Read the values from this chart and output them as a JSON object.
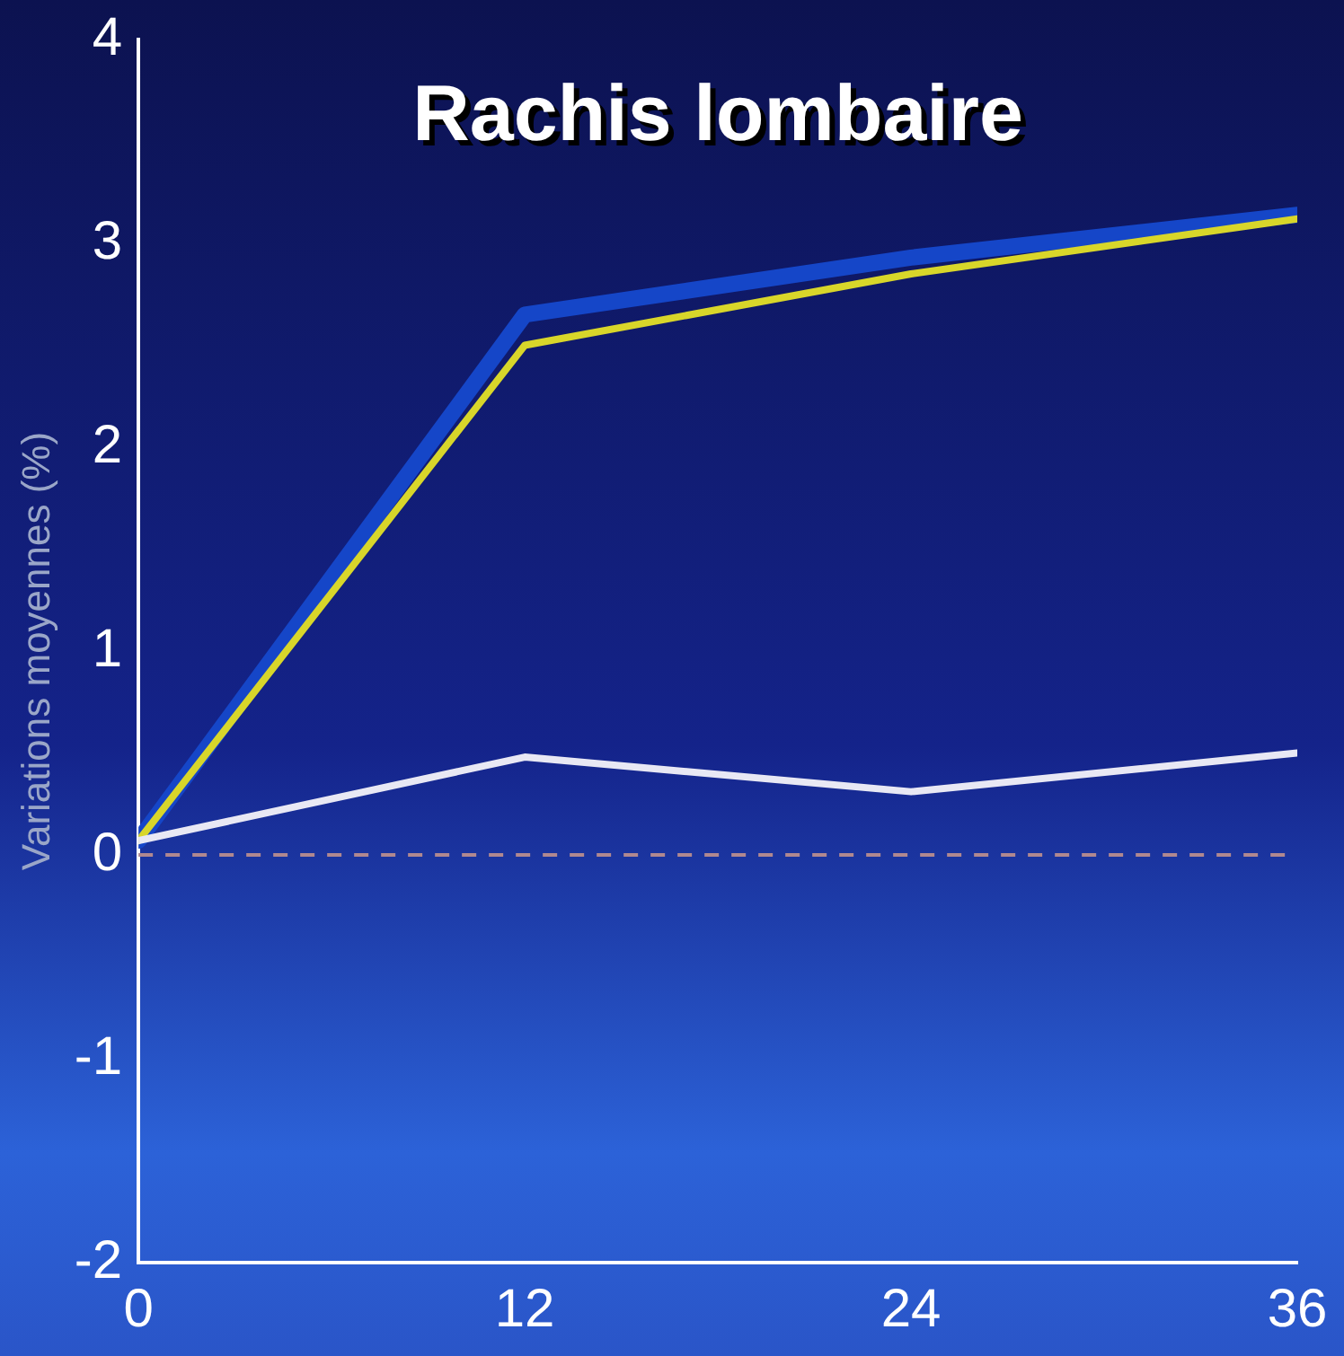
{
  "chart_data": {
    "type": "line",
    "title": "Rachis lombaire",
    "ylabel": "Variations moyennes (%)",
    "x": [
      0,
      12,
      24,
      36
    ],
    "series": [
      {
        "color": "#1546c8",
        "values": [
          0.07,
          2.65,
          2.93,
          3.14
        ]
      },
      {
        "color": "#d8d62a",
        "values": [
          0.07,
          2.5,
          2.85,
          3.12
        ]
      },
      {
        "color": "#e8e8f4",
        "values": [
          0.07,
          0.48,
          0.31,
          0.5
        ]
      }
    ],
    "xlim": [
      0,
      36
    ],
    "xticks": [
      0,
      12,
      24,
      36
    ],
    "ylim": [
      -2,
      4
    ],
    "yticks": [
      -2,
      -1,
      0,
      1,
      2,
      3,
      4
    ],
    "ref_lines": [
      {
        "axis": "y",
        "value": 0,
        "color": "#b08890",
        "line_style": "dashed"
      }
    ],
    "grid": false,
    "legend": false,
    "marker": "none",
    "line_style": "solid"
  }
}
